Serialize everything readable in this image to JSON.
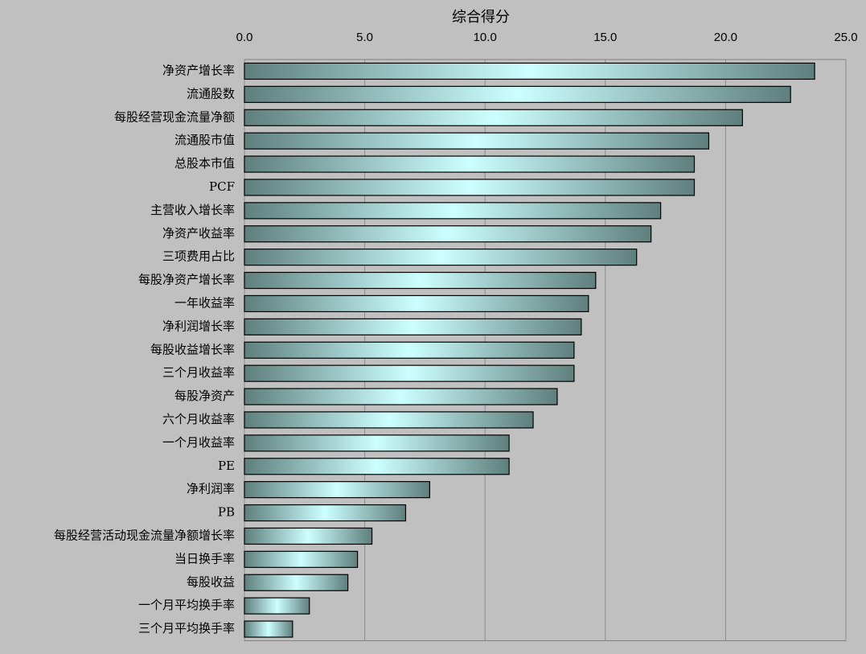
{
  "chart_data": {
    "type": "barh",
    "title": "综合得分",
    "categories": [
      "净资产增长率",
      "流通股数",
      "每股经营现金流量净额",
      "流通股市值",
      "总股本市值",
      "PCF",
      "主营收入增长率",
      "净资产收益率",
      "三项费用占比",
      "每股净资产增长率",
      "一年收益率",
      "净利润增长率",
      "每股收益增长率",
      "三个月收益率",
      "每股净资产",
      "六个月收益率",
      "一个月收益率",
      "PE",
      "净利润率",
      "PB",
      "每股经营活动现金流量净额增长率",
      "当日换手率",
      "每股收益",
      "一个月平均换手率",
      "三个月平均换手率"
    ],
    "values": [
      23.7,
      22.7,
      20.7,
      19.3,
      18.7,
      18.7,
      17.3,
      16.9,
      16.3,
      14.6,
      14.3,
      14.0,
      13.7,
      13.7,
      13.0,
      12.0,
      11.0,
      11.0,
      7.7,
      6.7,
      5.3,
      4.7,
      4.3,
      2.7,
      2.0
    ],
    "xlim": [
      0,
      25
    ],
    "xticks": [
      {
        "value": 0,
        "label": "0.0"
      },
      {
        "value": 5,
        "label": "5.0"
      },
      {
        "value": 10,
        "label": "10.0"
      },
      {
        "value": 15,
        "label": "15.0"
      },
      {
        "value": 20,
        "label": "20.0"
      },
      {
        "value": 25,
        "label": "25.0"
      }
    ],
    "grid": true
  }
}
